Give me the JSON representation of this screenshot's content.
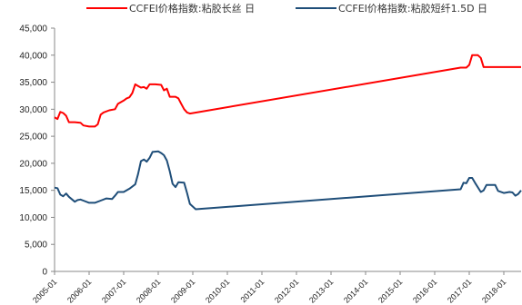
{
  "chart_data": {
    "type": "line",
    "ylim": [
      0,
      45000
    ],
    "xlim": [
      "2005-01",
      "2018-07"
    ],
    "y_ticks": [
      "0",
      "5,000",
      "10,000",
      "15,000",
      "20,000",
      "25,000",
      "30,000",
      "35,000",
      "40,000",
      "45,000"
    ],
    "x_ticks": [
      "2005-01",
      "2006-01",
      "2007-01",
      "2008-01",
      "2009-01",
      "2010-01",
      "2011-01",
      "2012-01",
      "2013-01",
      "2014-01",
      "2015-01",
      "2016-01",
      "2017-01",
      "2018-01"
    ],
    "grid": false,
    "legend_position": "top",
    "series": [
      {
        "name": "CCFEI价格指数:粘胶长丝 日",
        "color": "#ff0000",
        "points": [
          [
            "2005-01",
            28500
          ],
          [
            "2005-02",
            28200
          ],
          [
            "2005-03",
            29500
          ],
          [
            "2005-04",
            29300
          ],
          [
            "2005-05",
            28800
          ],
          [
            "2005-06",
            27600
          ],
          [
            "2005-08",
            27600
          ],
          [
            "2005-10",
            27500
          ],
          [
            "2005-11",
            27000
          ],
          [
            "2006-01",
            26800
          ],
          [
            "2006-03",
            26800
          ],
          [
            "2006-04",
            27200
          ],
          [
            "2006-05",
            29000
          ],
          [
            "2006-06",
            29400
          ],
          [
            "2006-08",
            29800
          ],
          [
            "2006-10",
            30000
          ],
          [
            "2006-11",
            31000
          ],
          [
            "2007-01",
            31600
          ],
          [
            "2007-02",
            32000
          ],
          [
            "2007-03",
            32200
          ],
          [
            "2007-04",
            33000
          ],
          [
            "2007-05",
            34600
          ],
          [
            "2007-06",
            34300
          ],
          [
            "2007-07",
            34000
          ],
          [
            "2007-08",
            34100
          ],
          [
            "2007-09",
            33800
          ],
          [
            "2007-10",
            34600
          ],
          [
            "2007-12",
            34600
          ],
          [
            "2008-02",
            34500
          ],
          [
            "2008-03",
            33500
          ],
          [
            "2008-04",
            33800
          ],
          [
            "2008-05",
            32300
          ],
          [
            "2008-07",
            32300
          ],
          [
            "2008-08",
            32000
          ],
          [
            "2008-09",
            31000
          ],
          [
            "2008-10",
            30000
          ],
          [
            "2008-11",
            29400
          ],
          [
            "2008-12",
            29200
          ],
          [
            "2016-10",
            37700
          ],
          [
            "2016-12",
            37700
          ],
          [
            "2017-01",
            38200
          ],
          [
            "2017-02",
            40000
          ],
          [
            "2017-04",
            40000
          ],
          [
            "2017-05",
            39500
          ],
          [
            "2017-06",
            37800
          ],
          [
            "2017-09",
            37800
          ],
          [
            "2018-07",
            37800
          ]
        ]
      },
      {
        "name": "CCFEI价格指数:粘胶短纤1.5D 日",
        "color": "#1f4e79",
        "points": [
          [
            "2005-01",
            15500
          ],
          [
            "2005-02",
            15400
          ],
          [
            "2005-03",
            14200
          ],
          [
            "2005-04",
            13900
          ],
          [
            "2005-05",
            14400
          ],
          [
            "2005-06",
            13800
          ],
          [
            "2005-08",
            12900
          ],
          [
            "2005-09",
            13200
          ],
          [
            "2005-10",
            13300
          ],
          [
            "2005-11",
            13100
          ],
          [
            "2006-01",
            12700
          ],
          [
            "2006-03",
            12700
          ],
          [
            "2006-05",
            13100
          ],
          [
            "2006-07",
            13500
          ],
          [
            "2006-09",
            13400
          ],
          [
            "2006-10",
            14000
          ],
          [
            "2006-11",
            14700
          ],
          [
            "2007-01",
            14700
          ],
          [
            "2007-03",
            15300
          ],
          [
            "2007-05",
            16100
          ],
          [
            "2007-06",
            18000
          ],
          [
            "2007-07",
            20400
          ],
          [
            "2007-08",
            20700
          ],
          [
            "2007-09",
            20300
          ],
          [
            "2007-10",
            21000
          ],
          [
            "2007-11",
            22100
          ],
          [
            "2008-01",
            22200
          ],
          [
            "2008-02",
            21900
          ],
          [
            "2008-03",
            21500
          ],
          [
            "2008-04",
            20500
          ],
          [
            "2008-05",
            18500
          ],
          [
            "2008-06",
            16200
          ],
          [
            "2008-07",
            15600
          ],
          [
            "2008-08",
            16500
          ],
          [
            "2008-10",
            16400
          ],
          [
            "2008-11",
            14500
          ],
          [
            "2008-12",
            12500
          ],
          [
            "2009-02",
            11500
          ],
          [
            "2016-10",
            15200
          ],
          [
            "2016-11",
            16400
          ],
          [
            "2016-12",
            16300
          ],
          [
            "2017-01",
            17300
          ],
          [
            "2017-02",
            17300
          ],
          [
            "2017-03",
            16400
          ],
          [
            "2017-05",
            14700
          ],
          [
            "2017-06",
            15000
          ],
          [
            "2017-07",
            16000
          ],
          [
            "2017-10",
            16000
          ],
          [
            "2017-11",
            14900
          ],
          [
            "2018-01",
            14500
          ],
          [
            "2018-03",
            14700
          ],
          [
            "2018-04",
            14600
          ],
          [
            "2018-05",
            14000
          ],
          [
            "2018-06",
            14300
          ],
          [
            "2018-07",
            15000
          ]
        ]
      }
    ]
  }
}
